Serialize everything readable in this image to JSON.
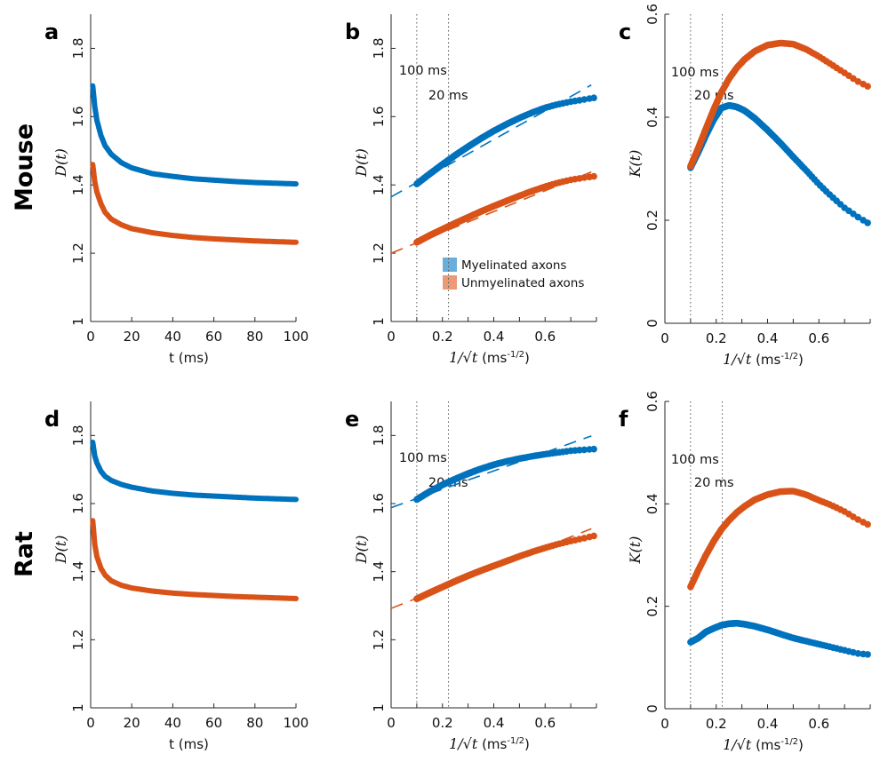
{
  "figure": {
    "row_labels": [
      "Mouse",
      "Rat"
    ],
    "legend": {
      "placement": "lower-right of panel b",
      "entries": [
        {
          "label": "Myelinated axons",
          "color": "#6aaedc"
        },
        {
          "label": "Unmyelinated axons",
          "color": "#eb9a78"
        }
      ]
    },
    "colors": {
      "myelinated": "#0072bd",
      "unmyelinated": "#d95319",
      "axis": "#262626",
      "guide": "#555555"
    }
  },
  "chart_data": [
    {
      "panel": "a",
      "row": "Mouse",
      "type": "line",
      "title": "",
      "xlabel": "t (ms)",
      "ylabel": "D(t)",
      "xlim": [
        0,
        100
      ],
      "ylim": [
        1,
        1.9
      ],
      "xticks": [
        0,
        20,
        40,
        60,
        80,
        100
      ],
      "xtick_labels": [
        "0",
        "20",
        "40",
        "60",
        "80",
        "100"
      ],
      "yticks": [
        1,
        1.2,
        1.4,
        1.6,
        1.8
      ],
      "ytick_labels": [
        "1",
        "1.2",
        "1.4",
        "1.6",
        "1.8"
      ],
      "grid": false,
      "series": [
        {
          "name": "Myelinated axons",
          "x": [
            1,
            2,
            3,
            5,
            7,
            10,
            15,
            20,
            30,
            40,
            50,
            60,
            70,
            80,
            90,
            100
          ],
          "values": [
            1.69,
            1.63,
            1.59,
            1.545,
            1.515,
            1.49,
            1.465,
            1.45,
            1.433,
            1.425,
            1.418,
            1.414,
            1.41,
            1.407,
            1.405,
            1.403
          ]
        },
        {
          "name": "Unmyelinated axons",
          "x": [
            1,
            2,
            3,
            5,
            7,
            10,
            15,
            20,
            30,
            40,
            50,
            60,
            70,
            80,
            90,
            100
          ],
          "values": [
            1.46,
            1.41,
            1.38,
            1.345,
            1.32,
            1.3,
            1.283,
            1.272,
            1.26,
            1.252,
            1.246,
            1.242,
            1.239,
            1.236,
            1.234,
            1.232
          ]
        }
      ]
    },
    {
      "panel": "b",
      "row": "Mouse",
      "type": "scatter",
      "xlabel": "1/√t (ms^-1/2)",
      "ylabel": "D(t)",
      "xlim": [
        0,
        0.8
      ],
      "ylim": [
        1,
        1.9
      ],
      "xticks": [
        0,
        0.2,
        0.4,
        0.6
      ],
      "xtick_labels": [
        "0",
        "0.2",
        "0.4",
        "0.6"
      ],
      "xminor": [
        0.1,
        0.3,
        0.5,
        0.7
      ],
      "yticks": [
        1,
        1.2,
        1.4,
        1.6,
        1.8
      ],
      "ytick_labels": [
        "1",
        "1.2",
        "1.4",
        "1.6",
        "1.8"
      ],
      "grid": false,
      "vlines": [
        {
          "x": 0.1,
          "label": "100 ms"
        },
        {
          "x": 0.2236,
          "label": "20 ms"
        }
      ],
      "series": [
        {
          "name": "Myelinated axons",
          "x": [
            0.1,
            0.15,
            0.2,
            0.25,
            0.3,
            0.35,
            0.4,
            0.45,
            0.5,
            0.55,
            0.6,
            0.65,
            0.7,
            0.75,
            0.79
          ],
          "values": [
            1.403,
            1.432,
            1.46,
            1.487,
            1.512,
            1.536,
            1.558,
            1.578,
            1.596,
            1.612,
            1.626,
            1.636,
            1.644,
            1.65,
            1.655
          ],
          "fit": {
            "intercept": 1.365,
            "slope": 0.42
          }
        },
        {
          "name": "Unmyelinated axons",
          "x": [
            0.1,
            0.15,
            0.2,
            0.25,
            0.3,
            0.35,
            0.4,
            0.45,
            0.5,
            0.55,
            0.6,
            0.65,
            0.7,
            0.75,
            0.79
          ],
          "values": [
            1.232,
            1.252,
            1.27,
            1.288,
            1.305,
            1.322,
            1.338,
            1.353,
            1.368,
            1.382,
            1.395,
            1.406,
            1.415,
            1.421,
            1.425
          ],
          "fit": {
            "intercept": 1.2,
            "slope": 0.305
          }
        }
      ]
    },
    {
      "panel": "c",
      "row": "Mouse",
      "type": "scatter",
      "xlabel": "1/√t (ms^-1/2)",
      "ylabel": "K(t)",
      "xlim": [
        0,
        0.8
      ],
      "ylim": [
        0,
        0.6
      ],
      "xticks": [
        0,
        0.2,
        0.4,
        0.6
      ],
      "xtick_labels": [
        "0",
        "0.2",
        "0.4",
        "0.6"
      ],
      "xminor": [
        0.1,
        0.3,
        0.5,
        0.7
      ],
      "yticks": [
        0,
        0.2,
        0.4,
        0.6
      ],
      "ytick_labels": [
        "0",
        "0.2",
        "0.4",
        "0.6"
      ],
      "grid": false,
      "vlines": [
        {
          "x": 0.1,
          "label": "100 ms"
        },
        {
          "x": 0.2236,
          "label": "20 ms"
        }
      ],
      "series": [
        {
          "name": "Myelinated axons",
          "x": [
            0.1,
            0.13,
            0.16,
            0.19,
            0.22,
            0.25,
            0.28,
            0.31,
            0.35,
            0.4,
            0.45,
            0.5,
            0.55,
            0.6,
            0.65,
            0.7,
            0.75,
            0.79
          ],
          "values": [
            0.302,
            0.332,
            0.365,
            0.395,
            0.418,
            0.423,
            0.42,
            0.413,
            0.398,
            0.375,
            0.35,
            0.323,
            0.297,
            0.27,
            0.246,
            0.224,
            0.207,
            0.195
          ]
        },
        {
          "name": "Unmyelinated axons",
          "x": [
            0.1,
            0.13,
            0.16,
            0.19,
            0.22,
            0.25,
            0.28,
            0.31,
            0.35,
            0.4,
            0.45,
            0.5,
            0.55,
            0.6,
            0.65,
            0.7,
            0.75,
            0.79
          ],
          "values": [
            0.305,
            0.34,
            0.378,
            0.415,
            0.448,
            0.475,
            0.496,
            0.512,
            0.528,
            0.54,
            0.544,
            0.542,
            0.532,
            0.518,
            0.502,
            0.486,
            0.47,
            0.46
          ]
        }
      ]
    },
    {
      "panel": "d",
      "row": "Rat",
      "type": "line",
      "xlabel": "t (ms)",
      "ylabel": "D(t)",
      "xlim": [
        0,
        100
      ],
      "ylim": [
        1,
        1.9
      ],
      "xticks": [
        0,
        20,
        40,
        60,
        80,
        100
      ],
      "xtick_labels": [
        "0",
        "20",
        "40",
        "60",
        "80",
        "100"
      ],
      "yticks": [
        1,
        1.2,
        1.4,
        1.6,
        1.8
      ],
      "ytick_labels": [
        "1",
        "1.2",
        "1.4",
        "1.6",
        "1.8"
      ],
      "grid": false,
      "series": [
        {
          "name": "Myelinated axons",
          "x": [
            1,
            2,
            3,
            5,
            7,
            10,
            15,
            20,
            30,
            40,
            50,
            60,
            70,
            80,
            90,
            100
          ],
          "values": [
            1.78,
            1.74,
            1.72,
            1.695,
            1.68,
            1.668,
            1.656,
            1.648,
            1.637,
            1.63,
            1.625,
            1.622,
            1.619,
            1.616,
            1.614,
            1.612
          ]
        },
        {
          "name": "Unmyelinated axons",
          "x": [
            1,
            2,
            3,
            5,
            7,
            10,
            15,
            20,
            30,
            40,
            50,
            60,
            70,
            80,
            90,
            100
          ],
          "values": [
            1.55,
            1.48,
            1.445,
            1.41,
            1.39,
            1.373,
            1.36,
            1.352,
            1.343,
            1.337,
            1.333,
            1.33,
            1.327,
            1.325,
            1.323,
            1.321
          ]
        }
      ]
    },
    {
      "panel": "e",
      "row": "Rat",
      "type": "scatter",
      "xlabel": "1/√t (ms^-1/2)",
      "ylabel": "D(t)",
      "xlim": [
        0,
        0.8
      ],
      "ylim": [
        1,
        1.9
      ],
      "xticks": [
        0,
        0.2,
        0.4,
        0.6
      ],
      "xtick_labels": [
        "0",
        "0.2",
        "0.4",
        "0.6"
      ],
      "xminor": [
        0.1,
        0.3,
        0.5,
        0.7
      ],
      "yticks": [
        1,
        1.2,
        1.4,
        1.6,
        1.8
      ],
      "ytick_labels": [
        "1",
        "1.2",
        "1.4",
        "1.6",
        "1.8"
      ],
      "grid": false,
      "vlines": [
        {
          "x": 0.1,
          "label": "100 ms"
        },
        {
          "x": 0.2236,
          "label": "20 ms"
        }
      ],
      "series": [
        {
          "name": "Myelinated axons",
          "x": [
            0.1,
            0.15,
            0.2,
            0.25,
            0.3,
            0.35,
            0.4,
            0.45,
            0.5,
            0.55,
            0.6,
            0.65,
            0.7,
            0.75,
            0.79
          ],
          "values": [
            1.612,
            1.635,
            1.655,
            1.672,
            1.688,
            1.702,
            1.714,
            1.724,
            1.732,
            1.739,
            1.745,
            1.75,
            1.755,
            1.758,
            1.76
          ],
          "fit": {
            "intercept": 1.588,
            "slope": 0.27
          }
        },
        {
          "name": "Unmyelinated axons",
          "x": [
            0.1,
            0.15,
            0.2,
            0.25,
            0.3,
            0.35,
            0.4,
            0.45,
            0.5,
            0.55,
            0.6,
            0.65,
            0.7,
            0.75,
            0.79
          ],
          "values": [
            1.32,
            1.338,
            1.355,
            1.372,
            1.388,
            1.403,
            1.417,
            1.431,
            1.445,
            1.458,
            1.47,
            1.481,
            1.49,
            1.498,
            1.505
          ],
          "fit": {
            "intercept": 1.292,
            "slope": 0.3
          }
        }
      ]
    },
    {
      "panel": "f",
      "row": "Rat",
      "type": "scatter",
      "xlabel": "1/√t (ms^-1/2)",
      "ylabel": "K(t)",
      "xlim": [
        0,
        0.8
      ],
      "ylim": [
        0,
        0.6
      ],
      "xticks": [
        0,
        0.2,
        0.4,
        0.6
      ],
      "xtick_labels": [
        "0",
        "0.2",
        "0.4",
        "0.6"
      ],
      "xminor": [
        0.1,
        0.3,
        0.5,
        0.7
      ],
      "yticks": [
        0,
        0.2,
        0.4,
        0.6
      ],
      "ytick_labels": [
        "0",
        "0.2",
        "0.4",
        "0.6"
      ],
      "grid": false,
      "vlines": [
        {
          "x": 0.1,
          "label": "100 ms"
        },
        {
          "x": 0.2236,
          "label": "20 ms"
        }
      ],
      "series": [
        {
          "name": "Myelinated axons",
          "x": [
            0.1,
            0.13,
            0.16,
            0.19,
            0.22,
            0.25,
            0.28,
            0.31,
            0.35,
            0.4,
            0.45,
            0.5,
            0.55,
            0.6,
            0.65,
            0.7,
            0.75,
            0.79
          ],
          "values": [
            0.13,
            0.138,
            0.15,
            0.157,
            0.163,
            0.166,
            0.167,
            0.165,
            0.161,
            0.154,
            0.146,
            0.138,
            0.132,
            0.126,
            0.12,
            0.114,
            0.108,
            0.106
          ]
        },
        {
          "name": "Unmyelinated axons",
          "x": [
            0.1,
            0.13,
            0.16,
            0.19,
            0.22,
            0.25,
            0.28,
            0.31,
            0.35,
            0.4,
            0.45,
            0.5,
            0.55,
            0.6,
            0.65,
            0.7,
            0.75,
            0.79
          ],
          "values": [
            0.238,
            0.27,
            0.3,
            0.327,
            0.35,
            0.368,
            0.383,
            0.395,
            0.408,
            0.418,
            0.424,
            0.425,
            0.418,
            0.407,
            0.397,
            0.385,
            0.37,
            0.36
          ]
        }
      ]
    }
  ]
}
